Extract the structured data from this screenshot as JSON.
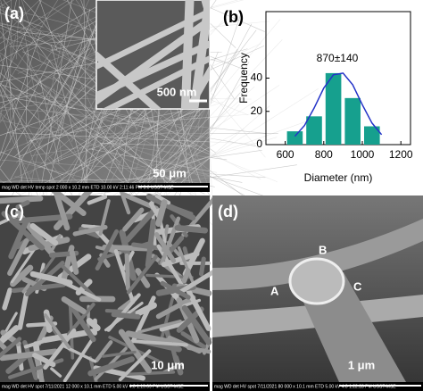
{
  "chart_data": {
    "type": "histogram",
    "title": "(b)",
    "annotation": "870±140",
    "x_label": "Diameter (nm)",
    "y_label": "Frequency",
    "bins": [
      600,
      700,
      800,
      900,
      1000,
      1100
    ],
    "values": [
      8,
      17,
      43,
      28,
      11
    ],
    "color": "#16a08e",
    "fit": {
      "x": [
        650,
        700,
        750,
        800,
        850,
        900,
        950,
        1000,
        1050,
        1100
      ],
      "values": [
        5,
        11.5,
        22,
        34,
        42,
        43,
        36,
        24,
        13,
        6
      ],
      "color": "#2433c8"
    },
    "xlim": [
      500,
      1250
    ],
    "xticks": [
      600,
      800,
      1000,
      1200
    ],
    "ylim": [
      0,
      80
    ],
    "yticks": [
      0,
      20,
      40
    ]
  },
  "panels": {
    "a": {
      "label": "(a)",
      "scale": "50 μm",
      "inset_scale": "500 nm",
      "info": "mag  WD  det  HV  temp  spot   2 000 x  10.2 mm  ETD  10.00 kV  2:11:46 PM  3.0   USST-MSE"
    },
    "c": {
      "label": "(c)",
      "scale": "10 μm",
      "info": "mag  WD  det  HV  spot  7/11/2021   12 000 x  10.1 mm  ETD  5.00 kV  4.0  1:19:09 PM   USST-MSE"
    },
    "d": {
      "label": "(d)",
      "scale": "1 μm",
      "points": [
        "A",
        "B",
        "C"
      ],
      "info": "mag  WD  det  HV  spot  7/11/2021   80 000 x  10.1 mm  ETD  5.00 kV  4.0  1:22:28 PM   USST-MSE"
    }
  }
}
